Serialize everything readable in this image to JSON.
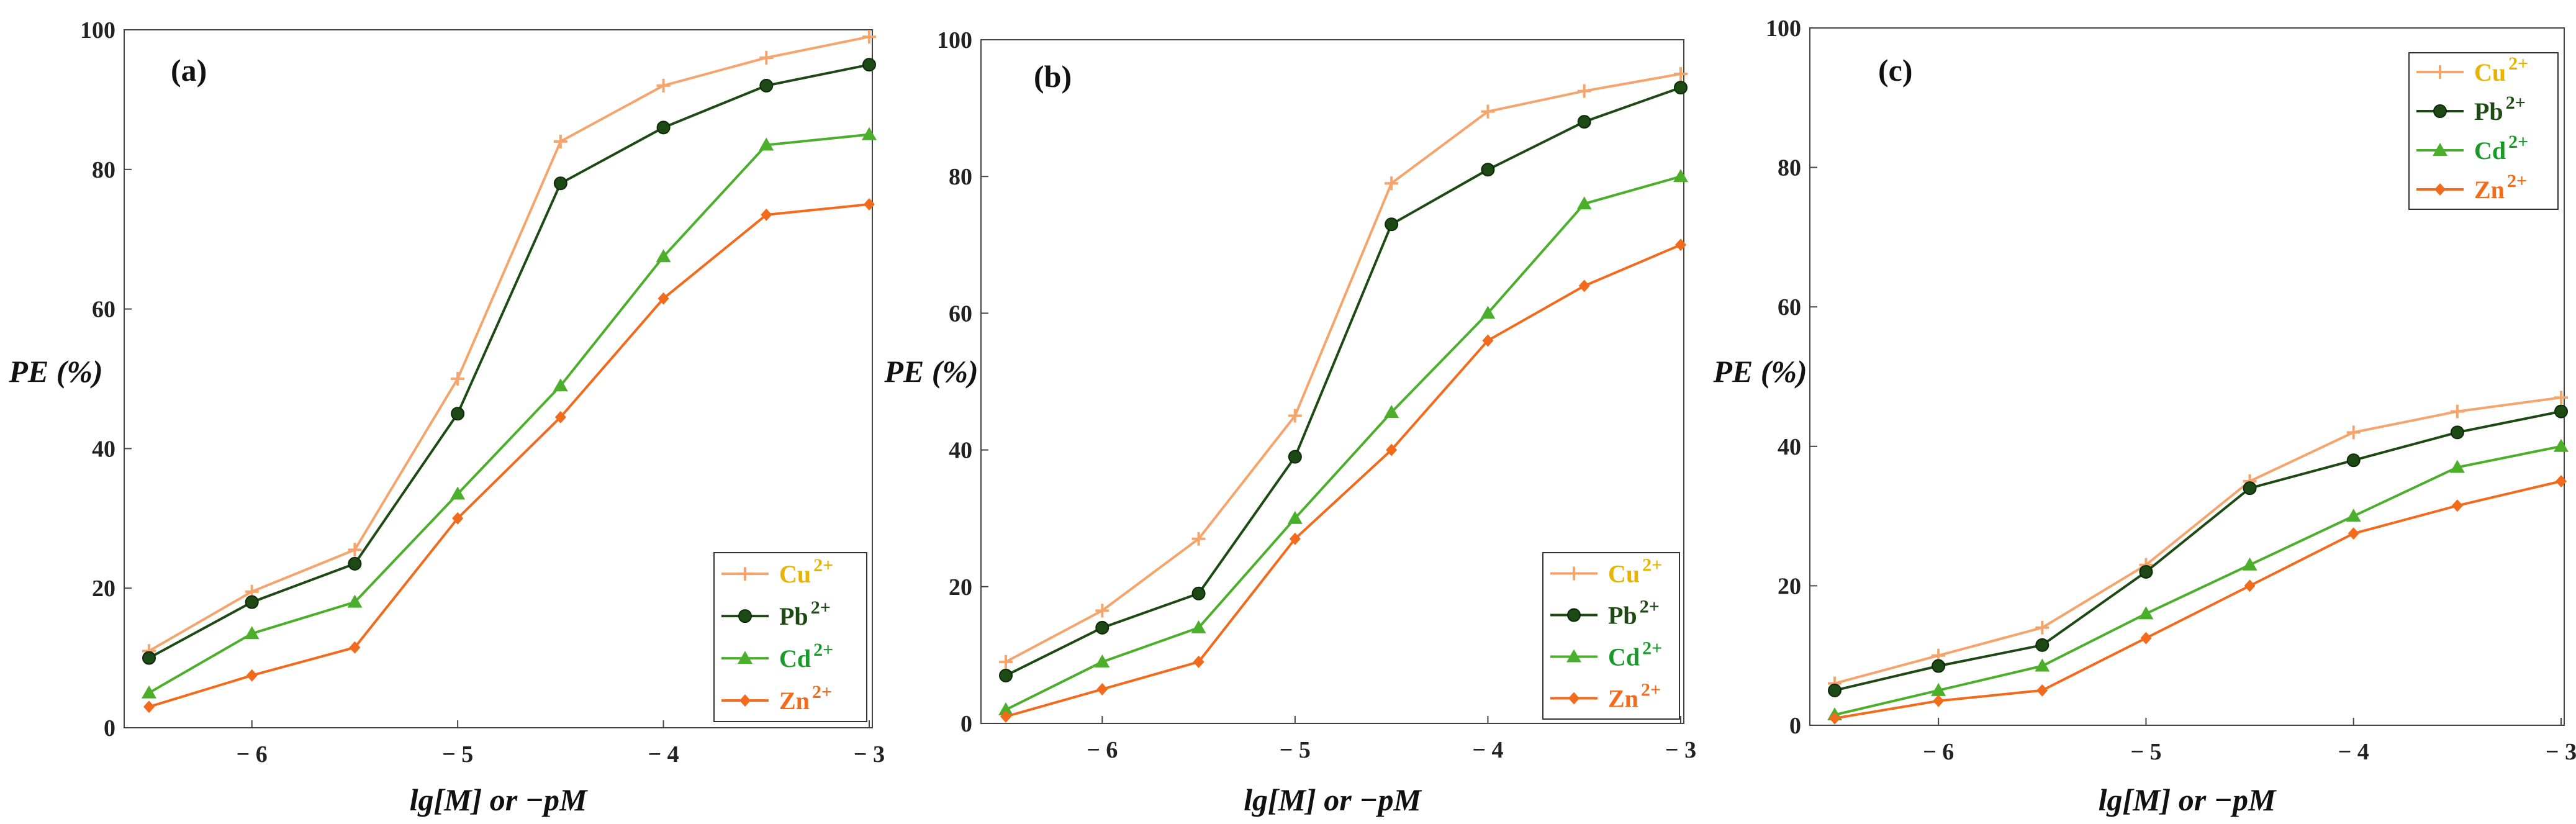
{
  "chart_data": [
    {
      "type": "line",
      "panel_label": "(a)",
      "xlabel": "lg[M] or −pM",
      "ylabel": "PE (%)",
      "xlim": [
        -6.5,
        -3
      ],
      "ylim": [
        0,
        100
      ],
      "yticks": [
        "0",
        "20",
        "40",
        "60",
        "80",
        "100"
      ],
      "xticks": [
        "− 6",
        "− 5",
        "− 4",
        "− 3"
      ],
      "x": [
        -6.5,
        -6,
        -5.5,
        -5,
        -4.5,
        -4,
        -3.5,
        -3
      ],
      "legend_position": "bottom-right",
      "series": [
        {
          "name": "Cu",
          "charge": "2+",
          "color": "#f5a46c",
          "text_color": "#e8b400",
          "marker": "plus",
          "values": [
            11,
            19.5,
            25.5,
            50,
            84,
            92,
            96,
            99
          ]
        },
        {
          "name": "Pb",
          "charge": "2+",
          "color": "#1d4a14",
          "text_color": "#1d4a14",
          "marker": "circle",
          "values": [
            10,
            18,
            23.5,
            45,
            78,
            86,
            92,
            95
          ]
        },
        {
          "name": "Cd",
          "charge": "2+",
          "color": "#4caf2b",
          "text_color": "#1a9a2a",
          "marker": "triangle",
          "values": [
            5,
            13.5,
            18,
            33.5,
            49,
            67.5,
            83.5,
            85
          ]
        },
        {
          "name": "Zn",
          "charge": "2+",
          "color": "#f26a1b",
          "text_color": "#f26a1b",
          "marker": "diamond",
          "values": [
            3,
            7.5,
            11.5,
            30,
            44.5,
            61.5,
            73.5,
            75
          ]
        }
      ]
    },
    {
      "type": "line",
      "panel_label": "(b)",
      "xlabel": "lg[M] or −pM",
      "ylabel": "PE (%)",
      "xlim": [
        -6.5,
        -3
      ],
      "ylim": [
        0,
        100
      ],
      "yticks": [
        "0",
        "20",
        "40",
        "60",
        "80",
        "100"
      ],
      "xticks": [
        "− 6",
        "− 5",
        "− 4",
        "− 3"
      ],
      "x": [
        -6.5,
        -6,
        -5.5,
        -5,
        -4.5,
        -4,
        -3.5,
        -3
      ],
      "legend_position": "bottom-right",
      "series": [
        {
          "name": "Cu",
          "charge": "2+",
          "color": "#f5a46c",
          "text_color": "#e8b400",
          "marker": "plus",
          "values": [
            9,
            16.5,
            27,
            45,
            79,
            89.5,
            92.5,
            95
          ]
        },
        {
          "name": "Pb",
          "charge": "2+",
          "color": "#1d4a14",
          "text_color": "#1d4a14",
          "marker": "circle",
          "values": [
            7,
            14,
            19,
            39,
            73,
            81,
            88,
            93
          ]
        },
        {
          "name": "Cd",
          "charge": "2+",
          "color": "#4caf2b",
          "text_color": "#1a9a2a",
          "marker": "triangle",
          "values": [
            2,
            9,
            14,
            30,
            45.5,
            60,
            76,
            80
          ]
        },
        {
          "name": "Zn",
          "charge": "2+",
          "color": "#f26a1b",
          "text_color": "#f26a1b",
          "marker": "diamond",
          "values": [
            1,
            5,
            9,
            27,
            40,
            56,
            64,
            70
          ]
        }
      ]
    },
    {
      "type": "line",
      "panel_label": "(c)",
      "xlabel": "lg[M] or −pM",
      "ylabel": "PE (%)",
      "xlim": [
        -6.5,
        -3
      ],
      "ylim": [
        0,
        100
      ],
      "yticks": [
        "0",
        "20",
        "40",
        "60",
        "80",
        "100"
      ],
      "xticks": [
        "− 6",
        "− 5",
        "− 4",
        "− 3"
      ],
      "x": [
        -6.5,
        -6,
        -5.5,
        -5,
        -4.5,
        -4,
        -3.5,
        -3
      ],
      "legend_position": "top-right",
      "series": [
        {
          "name": "Cu",
          "charge": "2+",
          "color": "#f5a46c",
          "text_color": "#e8b400",
          "marker": "plus",
          "values": [
            6,
            10,
            14,
            23,
            35,
            42,
            45,
            47
          ]
        },
        {
          "name": "Pb",
          "charge": "2+",
          "color": "#1d4a14",
          "text_color": "#1d4a14",
          "marker": "circle",
          "values": [
            5,
            8.5,
            11.5,
            22,
            34,
            38,
            42,
            45
          ]
        },
        {
          "name": "Cd",
          "charge": "2+",
          "color": "#4caf2b",
          "text_color": "#1a9a2a",
          "marker": "triangle",
          "values": [
            1.5,
            5,
            8.5,
            16,
            23,
            30,
            37,
            40
          ]
        },
        {
          "name": "Zn",
          "charge": "2+",
          "color": "#f26a1b",
          "text_color": "#f26a1b",
          "marker": "diamond",
          "values": [
            1,
            3.5,
            5,
            12.5,
            20,
            27.5,
            31.5,
            35
          ]
        }
      ]
    }
  ]
}
